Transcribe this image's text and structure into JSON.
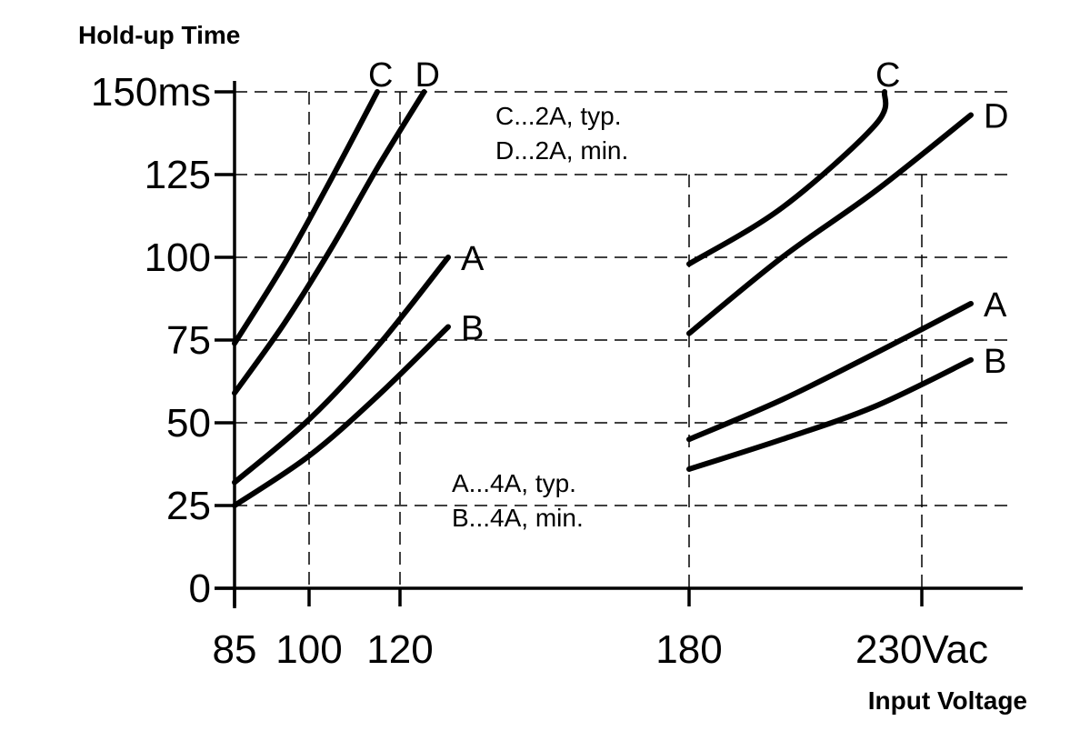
{
  "chart_data": {
    "type": "line",
    "ylabel": "Hold-up Time",
    "xlabel": "Input Voltage",
    "ylim": [
      0,
      150
    ],
    "y_ticks": [
      0,
      25,
      50,
      75,
      100,
      125,
      150
    ],
    "y_tick_labels": [
      "0",
      "25",
      "50",
      "75",
      "100",
      "125",
      "150ms"
    ],
    "x_ticks": [
      85,
      100,
      120,
      180,
      230
    ],
    "x_tick_labels": [
      "85",
      "100",
      "120",
      "180",
      "230Vac"
    ],
    "grid": true,
    "series": [
      {
        "name": "C",
        "segments": [
          {
            "x": [
              85,
              95,
              105,
              115
            ],
            "y": [
              74,
              98,
              124,
              150
            ]
          },
          {
            "x": [
              180,
              200,
              220,
              222
            ],
            "y": [
              98,
              115,
              140,
              150
            ]
          }
        ]
      },
      {
        "name": "D",
        "segments": [
          {
            "x": [
              85,
              95,
              105,
              115,
              125
            ],
            "y": [
              59,
              80,
              103,
              127,
              150
            ]
          },
          {
            "x": [
              180,
              200,
              220,
              241
            ],
            "y": [
              77,
              100,
              120,
              143
            ]
          }
        ]
      },
      {
        "name": "A",
        "segments": [
          {
            "x": [
              85,
              100,
              115,
              130
            ],
            "y": [
              32,
              51,
              73,
              100
            ]
          },
          {
            "x": [
              180,
              200,
              220,
              241
            ],
            "y": [
              45,
              57,
              71,
              86
            ]
          }
        ]
      },
      {
        "name": "B",
        "segments": [
          {
            "x": [
              85,
              100,
              115,
              130
            ],
            "y": [
              25,
              40,
              58,
              79
            ]
          },
          {
            "x": [
              180,
              200,
              220,
              241
            ],
            "y": [
              36,
              45,
              55,
              69
            ]
          }
        ]
      }
    ],
    "annotations": [
      {
        "text": "C...2A, typ."
      },
      {
        "text": "D...2A,  min."
      },
      {
        "text": "A...4A, typ."
      },
      {
        "text": "B...4A,  min."
      }
    ]
  }
}
